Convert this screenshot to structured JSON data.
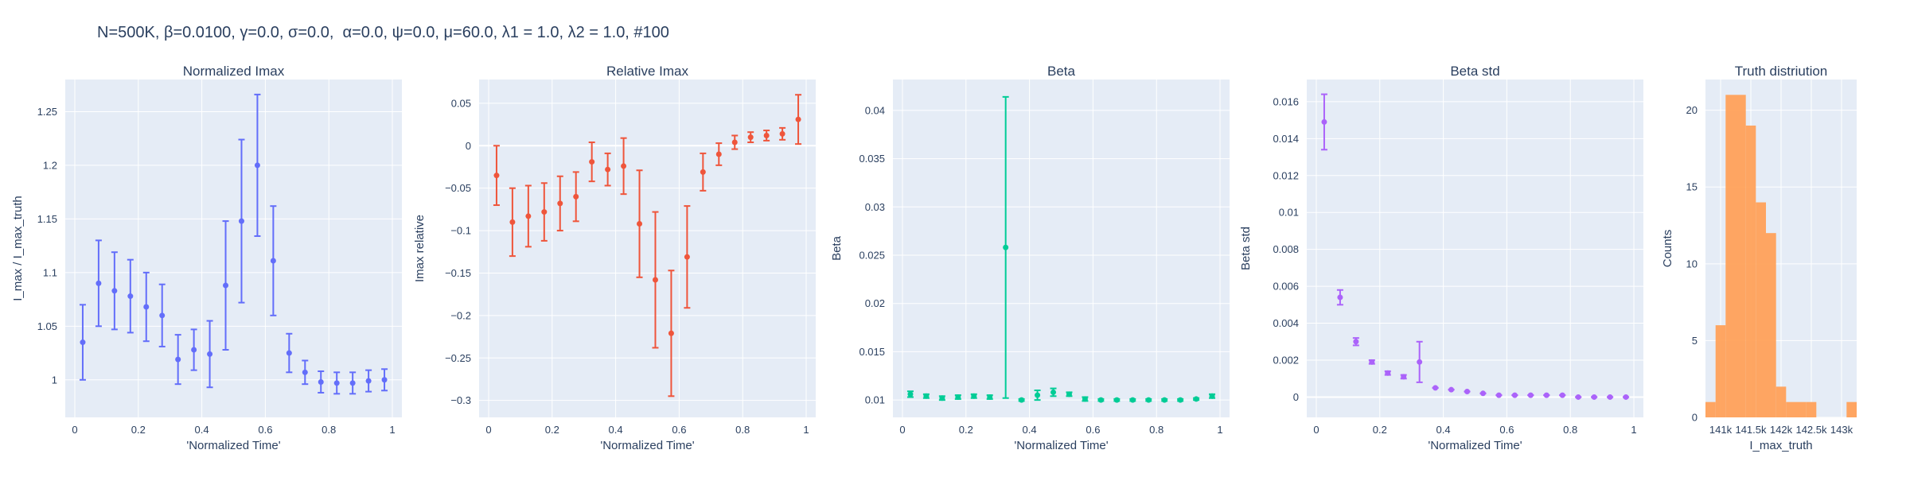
{
  "figure_title": "N=500K, β=0.0100, γ=0.0, σ=0.0,  α=0.0, ψ=0.0, μ=60.0, λ1 = 1.0, λ2 = 1.0, #100",
  "chart_data": [
    {
      "type": "scatter",
      "title": "Normalized Imax",
      "xlabel": "'Normalized Time'",
      "ylabel": "I_max / I_max_truth",
      "color": "#636efa",
      "xlim": [
        -0.03,
        1.03
      ],
      "ylim": [
        0.965,
        1.28
      ],
      "xticks": [
        0,
        0.2,
        0.4,
        0.6,
        0.8,
        1
      ],
      "xtick_labels": [
        "0",
        "0.2",
        "0.4",
        "0.6",
        "0.8",
        "1"
      ],
      "yticks": [
        1,
        1.05,
        1.1,
        1.15,
        1.2,
        1.25
      ],
      "ytick_labels": [
        "1",
        "1.05",
        "1.1",
        "1.15",
        "1.2",
        "1.25"
      ],
      "x": [
        0.025,
        0.075,
        0.125,
        0.175,
        0.225,
        0.275,
        0.325,
        0.375,
        0.425,
        0.475,
        0.525,
        0.575,
        0.625,
        0.675,
        0.725,
        0.775,
        0.825,
        0.875,
        0.925,
        0.975
      ],
      "y": [
        1.035,
        1.09,
        1.083,
        1.078,
        1.068,
        1.06,
        1.019,
        1.028,
        1.024,
        1.088,
        1.148,
        1.2,
        1.111,
        1.025,
        1.007,
        0.998,
        0.997,
        0.997,
        0.999,
        1.0
      ],
      "error": [
        0.035,
        0.04,
        0.036,
        0.034,
        0.032,
        0.029,
        0.023,
        0.019,
        0.031,
        0.06,
        0.076,
        0.066,
        0.051,
        0.018,
        0.011,
        0.01,
        0.01,
        0.01,
        0.01,
        0.01
      ]
    },
    {
      "type": "scatter",
      "title": "Relative Imax",
      "xlabel": "'Normalized Time'",
      "ylabel": "Imax relative",
      "color": "#ef553b",
      "xlim": [
        -0.03,
        1.03
      ],
      "ylim": [
        -0.32,
        0.078
      ],
      "xticks": [
        0,
        0.2,
        0.4,
        0.6,
        0.8,
        1
      ],
      "xtick_labels": [
        "0",
        "0.2",
        "0.4",
        "0.6",
        "0.8",
        "1"
      ],
      "yticks": [
        0.05,
        0,
        -0.05,
        -0.1,
        -0.15,
        -0.2,
        -0.25,
        -0.3
      ],
      "ytick_labels": [
        "0.05",
        "0",
        "−0.05",
        "−0.1",
        "−0.15",
        "−0.2",
        "−0.25",
        "−0.3"
      ],
      "x": [
        0.025,
        0.075,
        0.125,
        0.175,
        0.225,
        0.275,
        0.325,
        0.375,
        0.425,
        0.475,
        0.525,
        0.575,
        0.625,
        0.675,
        0.725,
        0.775,
        0.825,
        0.875,
        0.925,
        0.975
      ],
      "y": [
        -0.035,
        -0.09,
        -0.083,
        -0.078,
        -0.068,
        -0.06,
        -0.019,
        -0.028,
        -0.024,
        -0.092,
        -0.158,
        -0.221,
        -0.131,
        -0.031,
        -0.01,
        0.004,
        0.01,
        0.012,
        0.014,
        0.031
      ],
      "error": [
        0.035,
        0.04,
        0.036,
        0.034,
        0.032,
        0.029,
        0.023,
        0.019,
        0.033,
        0.063,
        0.08,
        0.074,
        0.06,
        0.022,
        0.013,
        0.008,
        0.006,
        0.006,
        0.007,
        0.029
      ]
    },
    {
      "type": "scatter",
      "title": "Beta",
      "xlabel": "'Normalized Time'",
      "ylabel": "Beta",
      "color": "#00cc96",
      "xlim": [
        -0.03,
        1.03
      ],
      "ylim": [
        0.0082,
        0.0432
      ],
      "xticks": [
        0,
        0.2,
        0.4,
        0.6,
        0.8,
        1
      ],
      "xtick_labels": [
        "0",
        "0.2",
        "0.4",
        "0.6",
        "0.8",
        "1"
      ],
      "yticks": [
        0.01,
        0.015,
        0.02,
        0.025,
        0.03,
        0.035,
        0.04
      ],
      "ytick_labels": [
        "0.01",
        "0.015",
        "0.02",
        "0.025",
        "0.03",
        "0.035",
        "0.04"
      ],
      "x": [
        0.025,
        0.075,
        0.125,
        0.175,
        0.225,
        0.275,
        0.325,
        0.375,
        0.425,
        0.475,
        0.525,
        0.575,
        0.625,
        0.675,
        0.725,
        0.775,
        0.825,
        0.875,
        0.925,
        0.975
      ],
      "y": [
        0.0106,
        0.0104,
        0.0102,
        0.0103,
        0.0104,
        0.0103,
        0.0258,
        0.01,
        0.0105,
        0.0108,
        0.0106,
        0.0101,
        0.01,
        0.01,
        0.01,
        0.01,
        0.01,
        0.01,
        0.0101,
        0.0104
      ],
      "error": [
        0.0003,
        0.0002,
        0.0002,
        0.0002,
        0.0002,
        0.0002,
        0.0156,
        0.0001,
        0.0005,
        0.0004,
        0.0002,
        0.0002,
        0.0001,
        0.0001,
        0.0001,
        0.0001,
        0.0001,
        0.0001,
        0.0001,
        0.0002
      ]
    },
    {
      "type": "scatter",
      "title": "Beta std",
      "xlabel": "'Normalized Time'",
      "ylabel": "Beta std",
      "color": "#ab63fa",
      "xlim": [
        -0.03,
        1.03
      ],
      "ylim": [
        -0.0011,
        0.0172
      ],
      "xticks": [
        0,
        0.2,
        0.4,
        0.6,
        0.8,
        1
      ],
      "xtick_labels": [
        "0",
        "0.2",
        "0.4",
        "0.6",
        "0.8",
        "1"
      ],
      "yticks": [
        0,
        0.002,
        0.004,
        0.006,
        0.008,
        0.01,
        0.012,
        0.014,
        0.016
      ],
      "ytick_labels": [
        "0",
        "0.002",
        "0.004",
        "0.006",
        "0.008",
        "0.01",
        "0.012",
        "0.014",
        "0.016"
      ],
      "x": [
        0.025,
        0.075,
        0.125,
        0.175,
        0.225,
        0.275,
        0.325,
        0.375,
        0.425,
        0.475,
        0.525,
        0.575,
        0.625,
        0.675,
        0.725,
        0.775,
        0.825,
        0.875,
        0.925,
        0.975
      ],
      "y": [
        0.0149,
        0.0054,
        0.003,
        0.0019,
        0.0013,
        0.0011,
        0.0019,
        0.0005,
        0.0004,
        0.0003,
        0.0002,
        0.0001,
        0.0001,
        0.0001,
        0.0001,
        0.0001,
        0.0,
        0.0,
        0.0,
        0.0
      ],
      "error": [
        0.0015,
        0.0004,
        0.0002,
        0.0001,
        0.0001,
        0.0001,
        0.0011,
        0.0,
        0.0,
        0.0,
        0.0,
        0.0,
        0.0,
        0.0,
        0.0,
        0.0,
        0.0,
        0.0,
        0.0,
        0.0
      ]
    },
    {
      "type": "bar",
      "title": "Truth distriution",
      "xlabel": "I_max_truth",
      "ylabel": "Counts",
      "color": "#ffa15a",
      "xlim": [
        140750,
        143250
      ],
      "ylim": [
        0,
        22
      ],
      "xticks": [
        141000,
        141500,
        142000,
        142500,
        143000
      ],
      "xtick_labels": [
        "141k",
        "141.5k",
        "142k",
        "142.5k",
        "143k"
      ],
      "yticks": [
        0,
        5,
        10,
        15,
        20
      ],
      "ytick_labels": [
        "0",
        "5",
        "10",
        "15",
        "20"
      ],
      "bin_start": [
        140750,
        140917,
        141083,
        141250,
        141417,
        141583,
        141750,
        141917,
        142083,
        142250,
        142417,
        142583,
        142750,
        142917,
        143083
      ],
      "bin_end": [
        140917,
        141083,
        141250,
        141417,
        141583,
        141750,
        141917,
        142083,
        142250,
        142417,
        142583,
        142750,
        142917,
        143083,
        143250
      ],
      "counts": [
        1,
        6,
        21,
        21,
        19,
        14,
        12,
        2,
        1,
        1,
        1,
        0,
        0,
        0,
        1
      ]
    }
  ]
}
